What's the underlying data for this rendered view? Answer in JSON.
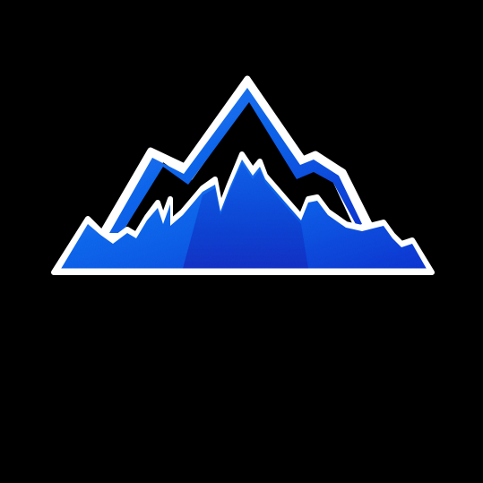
{
  "image": {
    "background_color": "#000000",
    "subject": "mountain-logo",
    "colors": {
      "outline_white": "#ffffff",
      "blue_light": "#1f86ff",
      "blue_mid": "#1762f0",
      "blue_deep": "#1538d8",
      "blue_dark": "#1a30c8"
    }
  }
}
